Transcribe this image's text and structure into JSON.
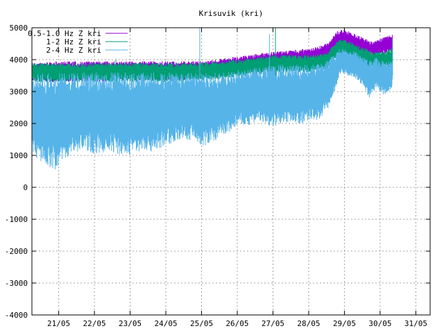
{
  "chart_data": {
    "type": "line",
    "title": "Krisuvik (kri)",
    "xlabel": "",
    "ylabel": "",
    "ylim": [
      -4000,
      5000
    ],
    "yticks": [
      -4000,
      -3000,
      -2000,
      -1000,
      0,
      1000,
      2000,
      3000,
      4000,
      5000
    ],
    "ytick_labels": [
      "-4000",
      "-3000",
      "-2000",
      "-1000",
      "0",
      "1000",
      "2000",
      "3000",
      "4000",
      "5000"
    ],
    "xlim_days": [
      20.25,
      31.4
    ],
    "xticks": [
      {
        "day": 21,
        "label": "21/05"
      },
      {
        "day": 22,
        "label": "22/05"
      },
      {
        "day": 23,
        "label": "23/05"
      },
      {
        "day": 24,
        "label": "24/05"
      },
      {
        "day": 25,
        "label": "25/05"
      },
      {
        "day": 26,
        "label": "26/05"
      },
      {
        "day": 27,
        "label": "27/05"
      },
      {
        "day": 28,
        "label": "28/05"
      },
      {
        "day": 29,
        "label": "29/05"
      },
      {
        "day": 30,
        "label": "30/05"
      },
      {
        "day": 31,
        "label": "31/05"
      }
    ],
    "grid": true,
    "legend_position": "top-left",
    "series": [
      {
        "name": "0.5-1.0 Hz Z kri",
        "color": "#9400d3",
        "band": [
          [
            20.25,
            3300,
            3900
          ],
          [
            21.0,
            3300,
            3950
          ],
          [
            22.0,
            3300,
            3950
          ],
          [
            23.0,
            3350,
            3950
          ],
          [
            24.0,
            3350,
            3950
          ],
          [
            25.0,
            3400,
            3950
          ],
          [
            26.0,
            3600,
            4100
          ],
          [
            27.0,
            3750,
            4250
          ],
          [
            28.0,
            3800,
            4350
          ],
          [
            28.5,
            4000,
            4500
          ],
          [
            28.8,
            4300,
            4900
          ],
          [
            29.0,
            4350,
            4950
          ],
          [
            29.3,
            4250,
            4800
          ],
          [
            29.6,
            4200,
            4650
          ],
          [
            29.8,
            4100,
            4550
          ],
          [
            30.0,
            4150,
            4650
          ],
          [
            30.2,
            4200,
            4750
          ],
          [
            30.35,
            4250,
            4800
          ]
        ]
      },
      {
        "name": "1-2 Hz Z kri",
        "color": "#009e73",
        "band": [
          [
            20.25,
            3300,
            3900
          ],
          [
            21.0,
            3300,
            3900
          ],
          [
            22.0,
            3300,
            3900
          ],
          [
            23.0,
            3300,
            3900
          ],
          [
            24.0,
            3300,
            3900
          ],
          [
            25.0,
            3350,
            3900
          ],
          [
            26.0,
            3450,
            4000
          ],
          [
            27.0,
            3600,
            4150
          ],
          [
            28.0,
            3600,
            4150
          ],
          [
            28.5,
            3700,
            4200
          ],
          [
            28.8,
            4100,
            4600
          ],
          [
            29.0,
            4150,
            4650
          ],
          [
            29.3,
            3950,
            4500
          ],
          [
            29.6,
            3800,
            4350
          ],
          [
            29.8,
            3700,
            4250
          ],
          [
            30.0,
            3700,
            4250
          ],
          [
            30.2,
            3750,
            4300
          ],
          [
            30.35,
            3800,
            4400
          ]
        ]
      },
      {
        "name": "2-4 Hz Z kri",
        "color": "#56b4e9",
        "band": [
          [
            20.25,
            1000,
            3600
          ],
          [
            20.6,
            700,
            3600
          ],
          [
            20.9,
            550,
            3600
          ],
          [
            21.3,
            1000,
            3600
          ],
          [
            21.7,
            1150,
            3600
          ],
          [
            22.0,
            1050,
            3600
          ],
          [
            22.5,
            1100,
            3600
          ],
          [
            22.9,
            950,
            3600
          ],
          [
            23.3,
            1150,
            3600
          ],
          [
            23.7,
            1100,
            3600
          ],
          [
            24.0,
            1300,
            3600
          ],
          [
            24.4,
            1500,
            3600
          ],
          [
            24.8,
            1450,
            3600
          ],
          [
            25.0,
            1250,
            3600
          ],
          [
            25.4,
            1450,
            3600
          ],
          [
            25.8,
            1700,
            3650
          ],
          [
            26.0,
            1950,
            3700
          ],
          [
            26.3,
            1900,
            3750
          ],
          [
            26.6,
            2100,
            3750
          ],
          [
            26.9,
            1850,
            3800
          ],
          [
            27.2,
            2000,
            3850
          ],
          [
            27.5,
            2050,
            3850
          ],
          [
            27.8,
            1950,
            3850
          ],
          [
            28.0,
            2100,
            3850
          ],
          [
            28.3,
            2100,
            3900
          ],
          [
            28.5,
            2350,
            3950
          ],
          [
            28.7,
            2900,
            4200
          ],
          [
            28.9,
            3600,
            4400
          ],
          [
            29.1,
            3500,
            4300
          ],
          [
            29.3,
            3400,
            4250
          ],
          [
            29.5,
            3200,
            4100
          ],
          [
            29.7,
            2800,
            4000
          ],
          [
            29.9,
            3100,
            4050
          ],
          [
            30.1,
            2900,
            3950
          ],
          [
            30.3,
            3000,
            3950
          ],
          [
            30.35,
            3250,
            3950
          ]
        ]
      }
    ],
    "spikes": [
      {
        "day": 24.95,
        "top": 5000,
        "color": "#56b4e9"
      },
      {
        "day": 26.9,
        "top": 4800,
        "color": "#56b4e9"
      },
      {
        "day": 27.07,
        "top": 5000,
        "color": "#009e73"
      },
      {
        "day": 22.6,
        "top": 4000,
        "color": "#009e73"
      },
      {
        "day": 30.35,
        "top": 4650,
        "color": "#56b4e9"
      }
    ]
  }
}
